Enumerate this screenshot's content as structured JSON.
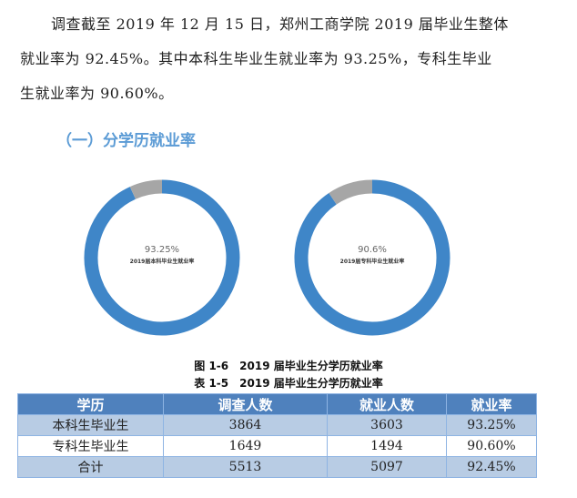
{
  "paragraph": {
    "line1": "调查截至 2019 年 12 月 15 日，郑州工商学院 2019 届毕业生整体",
    "line2": "就业率为 92.45%。其中本科生毕业生就业率为 93.25%，专科生毕业",
    "line3": "生就业率为 90.60%。"
  },
  "section_heading": "（一）分学历就业率",
  "chart_data": [
    {
      "type": "pie",
      "values": [
        93.25,
        6.75
      ],
      "colors": [
        "#3f86c8",
        "#a6a6a6"
      ],
      "center_value": "93.25%",
      "center_label": "2019届本科毕业生就业率"
    },
    {
      "type": "pie",
      "values": [
        90.6,
        9.4
      ],
      "colors": [
        "#3f86c8",
        "#a6a6a6"
      ],
      "center_value": "90.6%",
      "center_label": "2019届专科毕业生就业率"
    }
  ],
  "figure_caption": "图 1-6　2019 届毕业生分学历就业率",
  "table_caption": "表 1-5　2019 届毕业生分学历就业率",
  "table": {
    "headers": [
      "学历",
      "调查人数",
      "就业人数",
      "就业率"
    ],
    "rows": [
      [
        "本科生毕业生",
        "3864",
        "3603",
        "93.25%"
      ],
      [
        "专科生毕业生",
        "1649",
        "1494",
        "90.60%"
      ],
      [
        "合计",
        "5513",
        "5097",
        "92.45%"
      ]
    ]
  }
}
